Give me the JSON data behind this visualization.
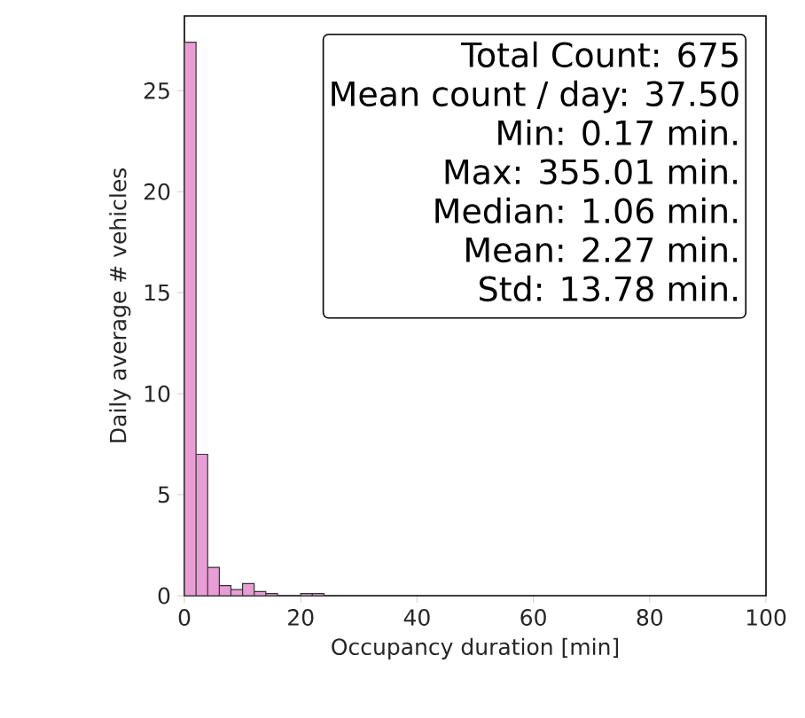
{
  "chart_data": {
    "type": "histogram",
    "xlabel": "Occupancy duration [min]",
    "ylabel": "Daily average # vehicles",
    "bins": [
      0,
      2,
      4,
      6,
      8,
      10,
      12,
      14,
      16,
      18,
      20,
      22,
      24
    ],
    "values": [
      27.4,
      7.0,
      1.4,
      0.5,
      0.3,
      0.6,
      0.2,
      0.1,
      0,
      0,
      0.1,
      0.1
    ],
    "color": "#e89ed4",
    "xlim": [
      0,
      100
    ],
    "xticks": [
      0,
      20,
      40,
      60,
      80,
      100
    ],
    "ylim": [
      0,
      28.7
    ],
    "yticks": [
      0,
      5,
      10,
      15,
      20,
      25
    ],
    "annotations": [
      "Total Count: 675",
      "Mean count / day: 37.50",
      "Min: 0.17 min.",
      "Max: 355.01 min.",
      "Median: 1.06 min.",
      "Mean: 2.27 min.",
      "Std: 13.78 min."
    ]
  }
}
